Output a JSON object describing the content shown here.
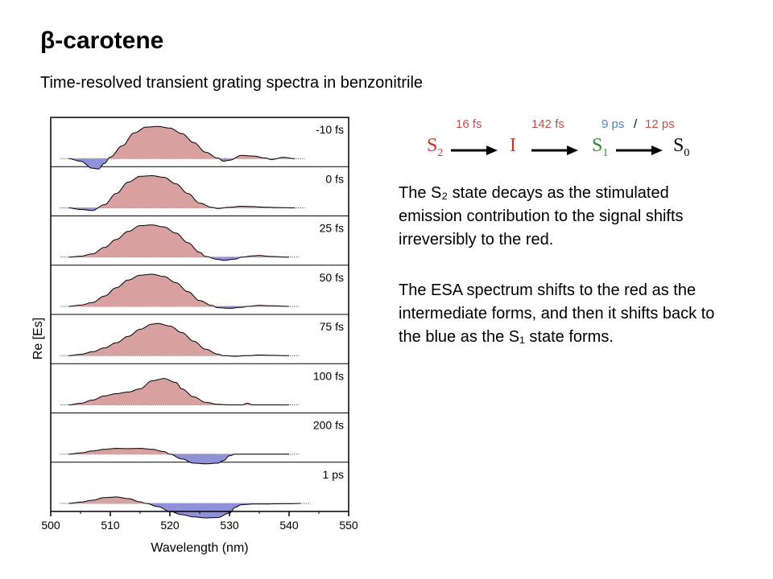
{
  "title": "β-carotene",
  "subtitle": "Time-resolved transient grating spectra in benzonitrile",
  "scheme": {
    "rates": [
      {
        "text": "16 fs",
        "color": "#c0504d"
      },
      {
        "text": "142 fs",
        "color": "#c0504d"
      },
      {
        "text": "9 ps",
        "color": "#4f81bd"
      },
      {
        "text": "/",
        "color": "#000000"
      },
      {
        "text": "12 ps",
        "color": "#c0504d"
      }
    ],
    "species": [
      {
        "base": "S",
        "sub": "2",
        "color": "#c0392b"
      },
      {
        "base": "I",
        "sub": "",
        "color": "#c0392b"
      },
      {
        "base": "S",
        "sub": "1",
        "color": "#2e8b2e"
      },
      {
        "base": "S",
        "sub": "0",
        "color": "#000000"
      }
    ]
  },
  "paragraphs": [
    "The S₂ state decays as the stimulated emission contribution to the signal shifts irreversibly to the red.",
    "The ESA spectrum shifts to the red as the intermediate forms, and then it shifts back to the blue as the S₁ state forms."
  ],
  "chart_data": {
    "type": "area",
    "xlabel": "Wavelength (nm)",
    "ylabel": "Re [Es]",
    "xlim": [
      500,
      550
    ],
    "xticks": [
      500,
      510,
      520,
      530,
      540,
      550
    ],
    "colors": {
      "positive": "#d9a0a0",
      "negative": "#8f92d8"
    },
    "series": [
      {
        "name": "-10 fs",
        "points": [
          [
            503,
            0
          ],
          [
            505,
            -0.08
          ],
          [
            507,
            -0.3
          ],
          [
            508,
            -0.32
          ],
          [
            509,
            -0.15
          ],
          [
            510,
            0.05
          ],
          [
            512,
            0.4
          ],
          [
            514,
            0.8
          ],
          [
            516,
            0.98
          ],
          [
            518,
            1.0
          ],
          [
            520,
            0.95
          ],
          [
            522,
            0.78
          ],
          [
            524,
            0.5
          ],
          [
            526,
            0.2
          ],
          [
            528,
            0.02
          ],
          [
            529,
            -0.08
          ],
          [
            530,
            -0.05
          ],
          [
            532,
            0.1
          ],
          [
            534,
            0.08
          ],
          [
            536,
            0.02
          ],
          [
            537,
            -0.03
          ],
          [
            539,
            0.04
          ],
          [
            541,
            0
          ]
        ]
      },
      {
        "name": "0 fs",
        "points": [
          [
            503,
            0
          ],
          [
            505,
            -0.05
          ],
          [
            507,
            -0.08
          ],
          [
            509,
            0.1
          ],
          [
            511,
            0.45
          ],
          [
            513,
            0.8
          ],
          [
            515,
            0.98
          ],
          [
            517,
            1.0
          ],
          [
            519,
            0.95
          ],
          [
            521,
            0.75
          ],
          [
            523,
            0.45
          ],
          [
            525,
            0.15
          ],
          [
            527,
            0.02
          ],
          [
            528,
            -0.02
          ],
          [
            530,
            0.02
          ],
          [
            532,
            0.05
          ],
          [
            534,
            0.04
          ],
          [
            536,
            0.02
          ],
          [
            538,
            0.01
          ],
          [
            541,
            0
          ]
        ]
      },
      {
        "name": "25 fs",
        "points": [
          [
            503,
            0
          ],
          [
            505,
            0.03
          ],
          [
            507,
            0.1
          ],
          [
            509,
            0.3
          ],
          [
            511,
            0.55
          ],
          [
            513,
            0.8
          ],
          [
            515,
            0.98
          ],
          [
            517,
            1.0
          ],
          [
            519,
            0.94
          ],
          [
            521,
            0.75
          ],
          [
            523,
            0.45
          ],
          [
            525,
            0.15
          ],
          [
            526,
            0.02
          ],
          [
            528,
            -0.07
          ],
          [
            529,
            -0.1
          ],
          [
            531,
            -0.06
          ],
          [
            532,
            0
          ],
          [
            534,
            0.04
          ],
          [
            535,
            0.05
          ],
          [
            537,
            0.02
          ],
          [
            540,
            0
          ]
        ]
      },
      {
        "name": "50 fs",
        "points": [
          [
            503,
            0
          ],
          [
            505,
            0.04
          ],
          [
            507,
            0.12
          ],
          [
            509,
            0.32
          ],
          [
            511,
            0.58
          ],
          [
            513,
            0.82
          ],
          [
            515,
            0.97
          ],
          [
            517,
            1.0
          ],
          [
            519,
            0.93
          ],
          [
            521,
            0.74
          ],
          [
            523,
            0.46
          ],
          [
            525,
            0.18
          ],
          [
            527,
            0.03
          ],
          [
            528,
            -0.04
          ],
          [
            530,
            -0.06
          ],
          [
            532,
            -0.03
          ],
          [
            533,
            0
          ],
          [
            535,
            0.03
          ],
          [
            537,
            0.02
          ],
          [
            540,
            0
          ]
        ]
      },
      {
        "name": "75 fs",
        "points": [
          [
            503,
            0
          ],
          [
            505,
            0.04
          ],
          [
            507,
            0.12
          ],
          [
            509,
            0.24
          ],
          [
            511,
            0.4
          ],
          [
            513,
            0.6
          ],
          [
            515,
            0.82
          ],
          [
            517,
            0.98
          ],
          [
            518,
            1.0
          ],
          [
            520,
            0.92
          ],
          [
            522,
            0.72
          ],
          [
            524,
            0.45
          ],
          [
            526,
            0.2
          ],
          [
            528,
            0.05
          ],
          [
            529,
            0
          ],
          [
            531,
            -0.02
          ],
          [
            533,
            0
          ],
          [
            535,
            0.02
          ],
          [
            537,
            0.01
          ],
          [
            540,
            0
          ]
        ]
      },
      {
        "name": "100 fs",
        "points": [
          [
            503,
            0
          ],
          [
            505,
            0.05
          ],
          [
            507,
            0.15
          ],
          [
            509,
            0.28
          ],
          [
            511,
            0.35
          ],
          [
            513,
            0.4
          ],
          [
            515,
            0.5
          ],
          [
            517,
            0.75
          ],
          [
            519,
            0.82
          ],
          [
            521,
            0.7
          ],
          [
            522,
            0.5
          ],
          [
            524,
            0.25
          ],
          [
            526,
            0.08
          ],
          [
            528,
            0.02
          ],
          [
            530,
            0
          ],
          [
            532,
            0
          ],
          [
            533,
            0.05
          ],
          [
            534,
            0
          ],
          [
            536,
            0
          ],
          [
            540,
            0
          ]
        ]
      },
      {
        "name": "200 fs",
        "points": [
          [
            503,
            0
          ],
          [
            505,
            0.04
          ],
          [
            507,
            0.1
          ],
          [
            509,
            0.15
          ],
          [
            511,
            0.18
          ],
          [
            513,
            0.17
          ],
          [
            515,
            0.18
          ],
          [
            517,
            0.15
          ],
          [
            519,
            0.08
          ],
          [
            520,
            0
          ],
          [
            522,
            -0.15
          ],
          [
            524,
            -0.28
          ],
          [
            526,
            -0.3
          ],
          [
            528,
            -0.28
          ],
          [
            529,
            -0.2
          ],
          [
            530,
            -0.05
          ],
          [
            531,
            0
          ],
          [
            534,
            0
          ],
          [
            540,
            0
          ]
        ]
      },
      {
        "name": "1 ps",
        "points": [
          [
            503,
            0
          ],
          [
            505,
            0.04
          ],
          [
            507,
            0.1
          ],
          [
            509,
            0.18
          ],
          [
            511,
            0.2
          ],
          [
            513,
            0.15
          ],
          [
            515,
            0.05
          ],
          [
            516,
            0
          ],
          [
            518,
            -0.1
          ],
          [
            520,
            -0.25
          ],
          [
            522,
            -0.35
          ],
          [
            524,
            -0.42
          ],
          [
            526,
            -0.45
          ],
          [
            528,
            -0.44
          ],
          [
            530,
            -0.3
          ],
          [
            531,
            -0.12
          ],
          [
            532,
            -0.04
          ],
          [
            534,
            -0.02
          ],
          [
            540,
            -0.01
          ],
          [
            542,
            0
          ]
        ]
      }
    ]
  }
}
